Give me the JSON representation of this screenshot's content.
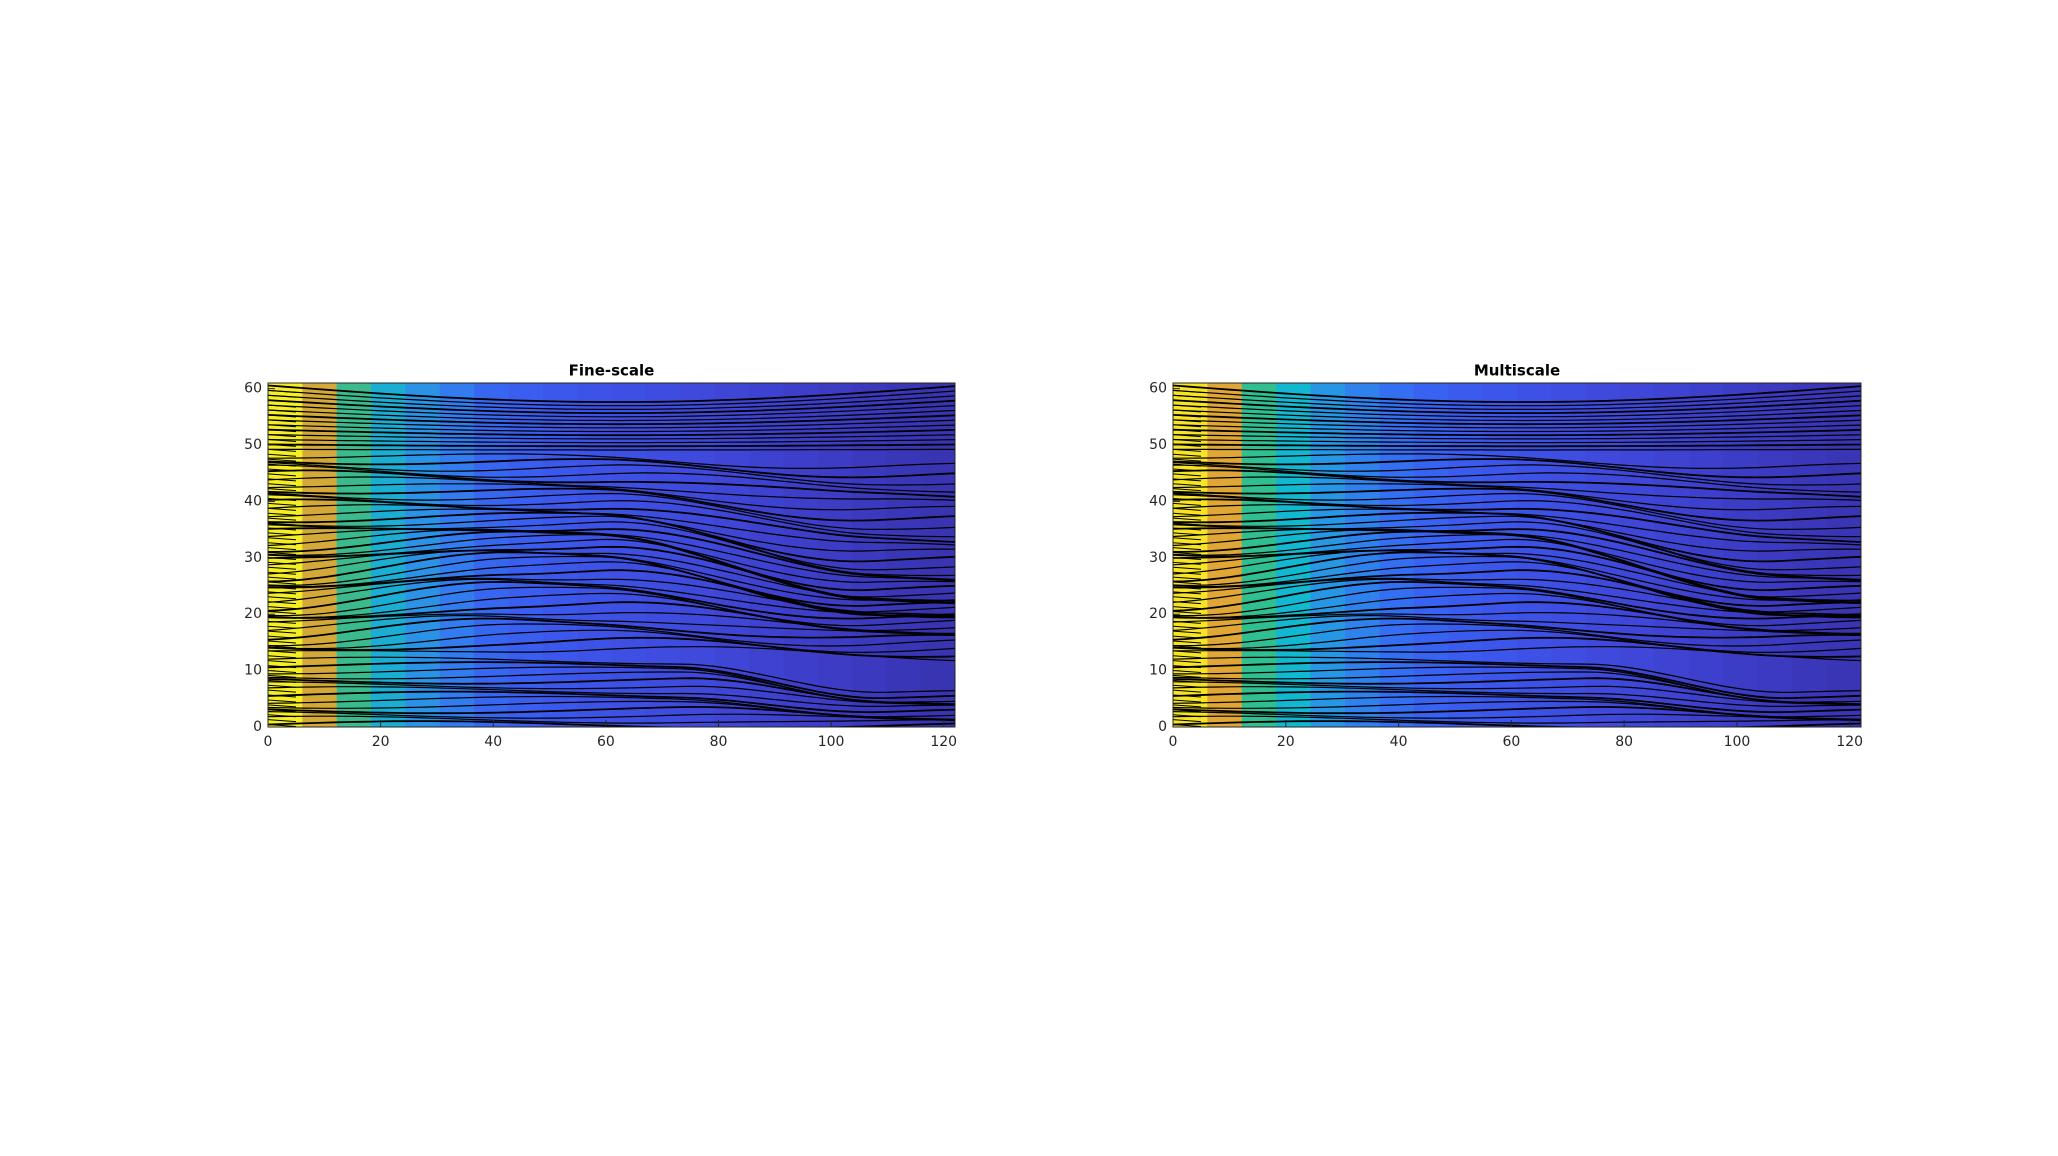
{
  "chart_data": [
    {
      "type": "field",
      "title": "Fine-scale",
      "xlim": [
        0,
        122
      ],
      "ylim": [
        0,
        61
      ],
      "xticks": [
        0,
        20,
        40,
        60,
        80,
        100,
        120
      ],
      "yticks": [
        0,
        10,
        20,
        30,
        40,
        50,
        60
      ],
      "band_colors": [
        "#f5ee22",
        "#d4a93a",
        "#3bbb8d",
        "#1badd2",
        "#2b92e6",
        "#337cef",
        "#3767f1",
        "#3a5ef0",
        "#3c58ec",
        "#3d53e8",
        "#3e4fe4",
        "#3f4ce0",
        "#3f49db",
        "#3f46d6",
        "#3e42d0",
        "#3d3fca",
        "#3c3cc4",
        "#3b39be",
        "#3a36b8",
        "#3934b2"
      ]
    },
    {
      "type": "field",
      "title": "Multiscale",
      "xlim": [
        0,
        122
      ],
      "ylim": [
        0,
        61
      ],
      "xticks": [
        0,
        20,
        40,
        60,
        80,
        100,
        120
      ],
      "yticks": [
        0,
        10,
        20,
        30,
        40,
        50,
        60
      ],
      "band_colors": [
        "#f7e524",
        "#e0a636",
        "#2fbf90",
        "#12b8d0",
        "#2796e4",
        "#2f82ee",
        "#346ef2",
        "#3862f1",
        "#3a5bee",
        "#3c55ea",
        "#3d51e6",
        "#3e4de2",
        "#3f4add",
        "#3f47d8",
        "#3e43d2",
        "#3d40cc",
        "#3c3dc6",
        "#3b3ac0",
        "#3a37ba",
        "#3935b4"
      ]
    }
  ]
}
